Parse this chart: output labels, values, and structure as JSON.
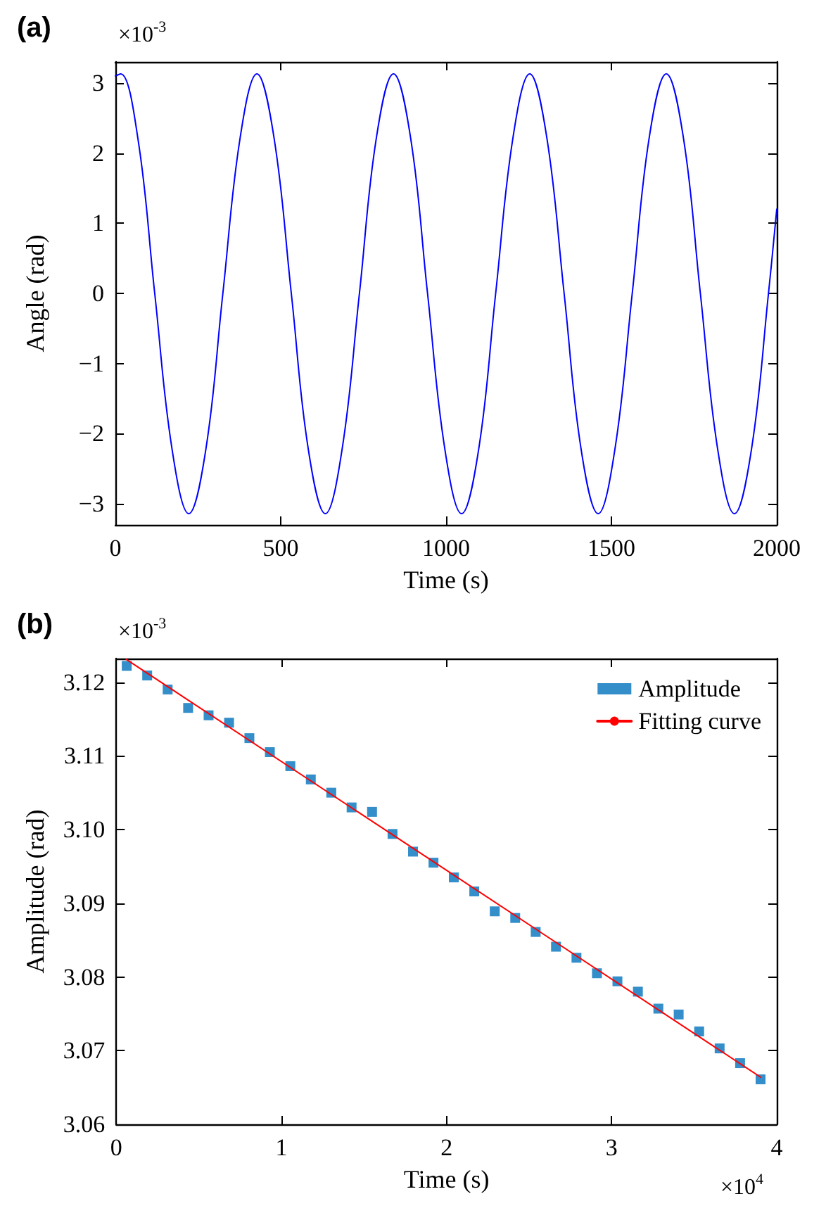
{
  "chart_data": [
    {
      "type": "line",
      "xlabel": "Time (s)",
      "ylabel": "Angle (rad)",
      "annotations": [
        "(a)",
        "×10$^{-3}$"
      ],
      "x": [
        0,
        16,
        68,
        119,
        171,
        222,
        274,
        325,
        377,
        428,
        480,
        532,
        583,
        635,
        686,
        738,
        789,
        841,
        893,
        944,
        996,
        1047,
        1099,
        1150,
        1202,
        1253,
        1305,
        1357,
        1408,
        1460,
        1511,
        1563,
        1614,
        1666,
        1718,
        1769,
        1821,
        1872,
        1924,
        1975,
        2000
      ],
      "series": [
        {
          "color": "#0000ff",
          "values": [
            3.1,
            3.13,
            2.21,
            0,
            -2.21,
            -3.14,
            -2.21,
            0,
            2.21,
            3.13,
            2.21,
            0,
            -2.21,
            -3.14,
            -2.21,
            0,
            2.21,
            3.13,
            2.21,
            0,
            -2.21,
            -3.14,
            -2.21,
            0,
            2.21,
            3.13,
            2.21,
            0,
            -2.21,
            -3.14,
            -2.21,
            0,
            2.21,
            3.13,
            2.21,
            0,
            -2.21,
            -3.14,
            -2.21,
            0,
            1.2
          ]
        }
      ],
      "xlim": [
        0,
        2000
      ],
      "xticks": [
        0,
        500,
        1000,
        1500,
        2000
      ],
      "ylim": [
        -3.3,
        3.3
      ],
      "yticks": [
        -3,
        -2,
        -1,
        0,
        1,
        2,
        3
      ],
      "grid": false,
      "legend": false,
      "marker": "none"
    },
    {
      "type": "scatter",
      "xlabel": "Time (s)",
      "ylabel": "Amplitude (rad)",
      "annotations": [
        "(b)",
        "×10$^{-3}$",
        "×10$^{4}$"
      ],
      "series": [
        {
          "name": "Amplitude",
          "color": "#0072bd",
          "marker": "square",
          "x": [
            0.063,
            0.187,
            0.311,
            0.435,
            0.559,
            0.683,
            0.806,
            0.93,
            1.054,
            1.178,
            1.302,
            1.425,
            1.549,
            1.673,
            1.797,
            1.921,
            2.044,
            2.168,
            2.292,
            2.416,
            2.54,
            2.663,
            2.787,
            2.911,
            3.035,
            3.159,
            3.283,
            3.406,
            3.53,
            3.654,
            3.778,
            3.902
          ],
          "values": [
            3.1222,
            3.1209,
            3.119,
            3.1165,
            3.1155,
            3.1145,
            3.1124,
            3.1105,
            3.1086,
            3.1068,
            3.105,
            3.103,
            3.1024,
            3.0994,
            3.097,
            3.0955,
            3.0935,
            3.0916,
            3.0889,
            3.088,
            3.0861,
            3.0841,
            3.0826,
            3.0805,
            3.0794,
            3.078,
            3.0757,
            3.0749,
            3.0726,
            3.0703,
            3.0683,
            3.0661
          ]
        },
        {
          "name": "Fitting curve",
          "type": "line",
          "color": "#ff0000",
          "marker": "none",
          "x": [
            0.06,
            3.902
          ],
          "values": [
            3.1231,
            3.0664
          ]
        }
      ],
      "xlim": [
        0,
        4
      ],
      "xticks": [
        0,
        1,
        2,
        3,
        4
      ],
      "ylim": [
        3.06,
        3.1232
      ],
      "yticks": [
        3.06,
        3.07,
        3.08,
        3.09,
        {
          "value": 3.1,
          "label": "3.10"
        },
        3.11,
        3.12
      ],
      "grid": false,
      "legend": "top right"
    }
  ]
}
